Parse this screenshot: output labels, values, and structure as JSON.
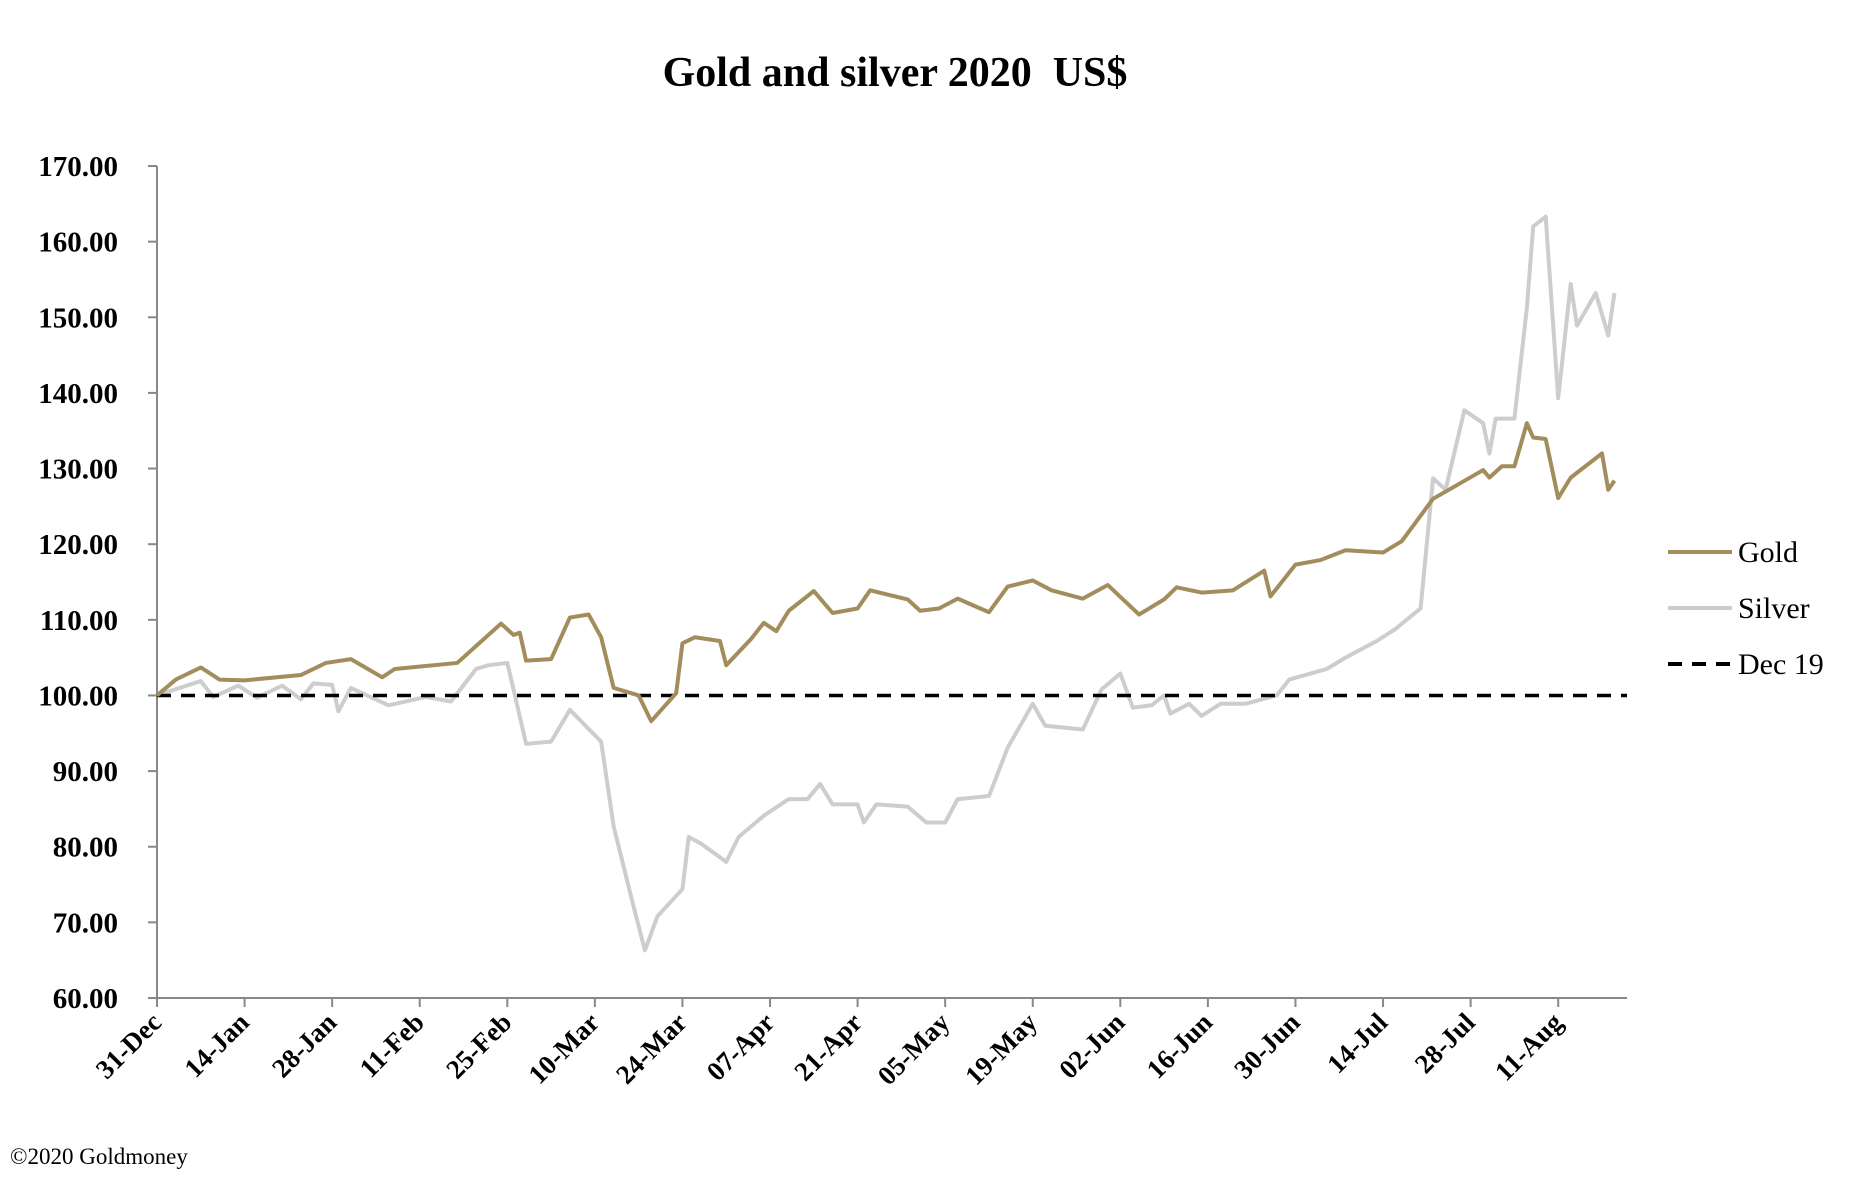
{
  "chart_data": {
    "type": "line",
    "title": "Gold and silver 2020  US$",
    "xlabel": "",
    "ylabel": "",
    "ylim": [
      60,
      170
    ],
    "y_ticks": [
      "60.00",
      "70.00",
      "80.00",
      "90.00",
      "100.00",
      "110.00",
      "120.00",
      "130.00",
      "140.00",
      "150.00",
      "160.00",
      "170.00"
    ],
    "x_ticks": [
      "31-Dec",
      "14-Jan",
      "28-Jan",
      "11-Feb",
      "25-Feb",
      "10-Mar",
      "24-Mar",
      "07-Apr",
      "21-Apr",
      "05-May",
      "19-May",
      "02-Jun",
      "16-Jun",
      "30-Jun",
      "14-Jul",
      "28-Jul",
      "11-Aug"
    ],
    "x_range": [
      "31-Dec",
      "21-Aug"
    ],
    "grid": false,
    "legend_position": "right",
    "series": [
      {
        "name": "Gold",
        "color": "#a38d5d",
        "style": "solid",
        "x": [
          "31-Dec",
          "03-Jan",
          "07-Jan",
          "10-Jan",
          "14-Jan",
          "23-Jan",
          "27-Jan",
          "31-Jan",
          "05-Feb",
          "07-Feb",
          "17-Feb",
          "24-Feb",
          "26-Feb",
          "27-Feb",
          "28-Feb",
          "03-Mar",
          "06-Mar",
          "09-Mar",
          "11-Mar",
          "13-Mar",
          "17-Mar",
          "19-Mar",
          "23-Mar",
          "24-Mar",
          "26-Mar",
          "30-Mar",
          "31-Mar",
          "04-Apr",
          "06-Apr",
          "08-Apr",
          "10-Apr",
          "14-Apr",
          "17-Apr",
          "21-Apr",
          "23-Apr",
          "29-Apr",
          "01-May",
          "04-May",
          "07-May",
          "12-May",
          "15-May",
          "19-May",
          "22-May",
          "27-May",
          "31-May",
          "05-Jun",
          "09-Jun",
          "11-Jun",
          "15-Jun",
          "20-Jun",
          "25-Jun",
          "26-Jun",
          "30-Jun",
          "04-Jul",
          "08-Jul",
          "14-Jul",
          "17-Jul",
          "22-Jul",
          "30-Jul",
          "31-Jul",
          "02-Aug",
          "04-Aug",
          "06-Aug",
          "07-Aug",
          "09-Aug",
          "11-Aug",
          "13-Aug",
          "18-Aug",
          "19-Aug",
          "20-Aug"
        ],
        "values": [
          100,
          102.1,
          103.7,
          102.1,
          102,
          102.7,
          104.3,
          104.8,
          102.4,
          103.5,
          104.3,
          109.5,
          108,
          108.3,
          104.6,
          104.8,
          110.3,
          110.7,
          107.7,
          101,
          100,
          96.6,
          100.3,
          106.9,
          107.7,
          107.2,
          104,
          107.5,
          109.6,
          108.5,
          111.2,
          113.8,
          110.9,
          111.5,
          113.9,
          112.7,
          111.2,
          111.5,
          112.8,
          111,
          114.4,
          115.2,
          113.9,
          112.8,
          114.6,
          110.7,
          112.7,
          114.3,
          113.6,
          113.9,
          116.5,
          113.1,
          117.3,
          117.9,
          119.2,
          118.9,
          120.4,
          126,
          129.8,
          128.8,
          130.3,
          130.3,
          136,
          134.1,
          133.9,
          126.1,
          128.8,
          132,
          127.2,
          128.4
        ]
      },
      {
        "name": "Silver",
        "color": "#cdcdcd",
        "style": "solid",
        "x": [
          "31-Dec",
          "04-Jan",
          "07-Jan",
          "09-Jan",
          "13-Jan",
          "16-Jan",
          "20-Jan",
          "23-Jan",
          "25-Jan",
          "28-Jan",
          "29-Jan",
          "31-Jan",
          "06-Feb",
          "12-Feb",
          "16-Feb",
          "20-Feb",
          "22-Feb",
          "25-Feb",
          "26-Feb",
          "28-Feb",
          "03-Mar",
          "06-Mar",
          "11-Mar",
          "13-Mar",
          "16-Mar",
          "18-Mar",
          "20-Mar",
          "24-Mar",
          "25-Mar",
          "27-Mar",
          "31-Mar",
          "02-Apr",
          "06-Apr",
          "10-Apr",
          "13-Apr",
          "15-Apr",
          "17-Apr",
          "21-Apr",
          "22-Apr",
          "24-Apr",
          "29-Apr",
          "02-May",
          "05-May",
          "07-May",
          "12-May",
          "15-May",
          "19-May",
          "21-May",
          "27-May",
          "30-May",
          "02-Jun",
          "04-Jun",
          "07-Jun",
          "09-Jun",
          "10-Jun",
          "13-Jun",
          "15-Jun",
          "18-Jun",
          "22-Jun",
          "27-Jun",
          "29-Jun",
          "05-Jul",
          "08-Jul",
          "13-Jul",
          "16-Jul",
          "20-Jul",
          "22-Jul",
          "24-Jul",
          "27-Jul",
          "30-Jul",
          "31-Jul",
          "01-Aug",
          "04-Aug",
          "06-Aug",
          "07-Aug",
          "09-Aug",
          "11-Aug",
          "13-Aug",
          "14-Aug",
          "17-Aug",
          "19-Aug",
          "20-Aug"
        ],
        "values": [
          100,
          101.1,
          101.9,
          99.8,
          101.3,
          99.7,
          101.3,
          99.5,
          101.6,
          101.4,
          97.9,
          101,
          98.7,
          99.8,
          99.2,
          103.5,
          104,
          104.3,
          100.8,
          93.6,
          93.9,
          98.1,
          93.9,
          82.7,
          72.7,
          66.3,
          70.8,
          74.4,
          81.3,
          80.4,
          78,
          81.3,
          84.1,
          86.3,
          86.3,
          88.3,
          85.6,
          85.6,
          83.2,
          85.6,
          85.3,
          83.2,
          83.2,
          86.3,
          86.7,
          93.1,
          98.9,
          96,
          95.5,
          100.8,
          102.9,
          98.4,
          98.7,
          100,
          97.6,
          98.9,
          97.3,
          98.9,
          98.9,
          100,
          102.1,
          103.5,
          105,
          107.2,
          108.8,
          111.5,
          128.7,
          127.2,
          137.7,
          136,
          132,
          136.6,
          136.6,
          151.3,
          162,
          163.3,
          139.3,
          154.4,
          148.9,
          153.2,
          147.6,
          153.2
        ]
      },
      {
        "name": "Dec 19",
        "color": "#000000",
        "style": "dashed",
        "x": [
          "31-Dec",
          "21-Aug"
        ],
        "values": [
          100,
          100
        ]
      }
    ]
  },
  "footer": {
    "copyright": "©2020 Goldmoney"
  }
}
